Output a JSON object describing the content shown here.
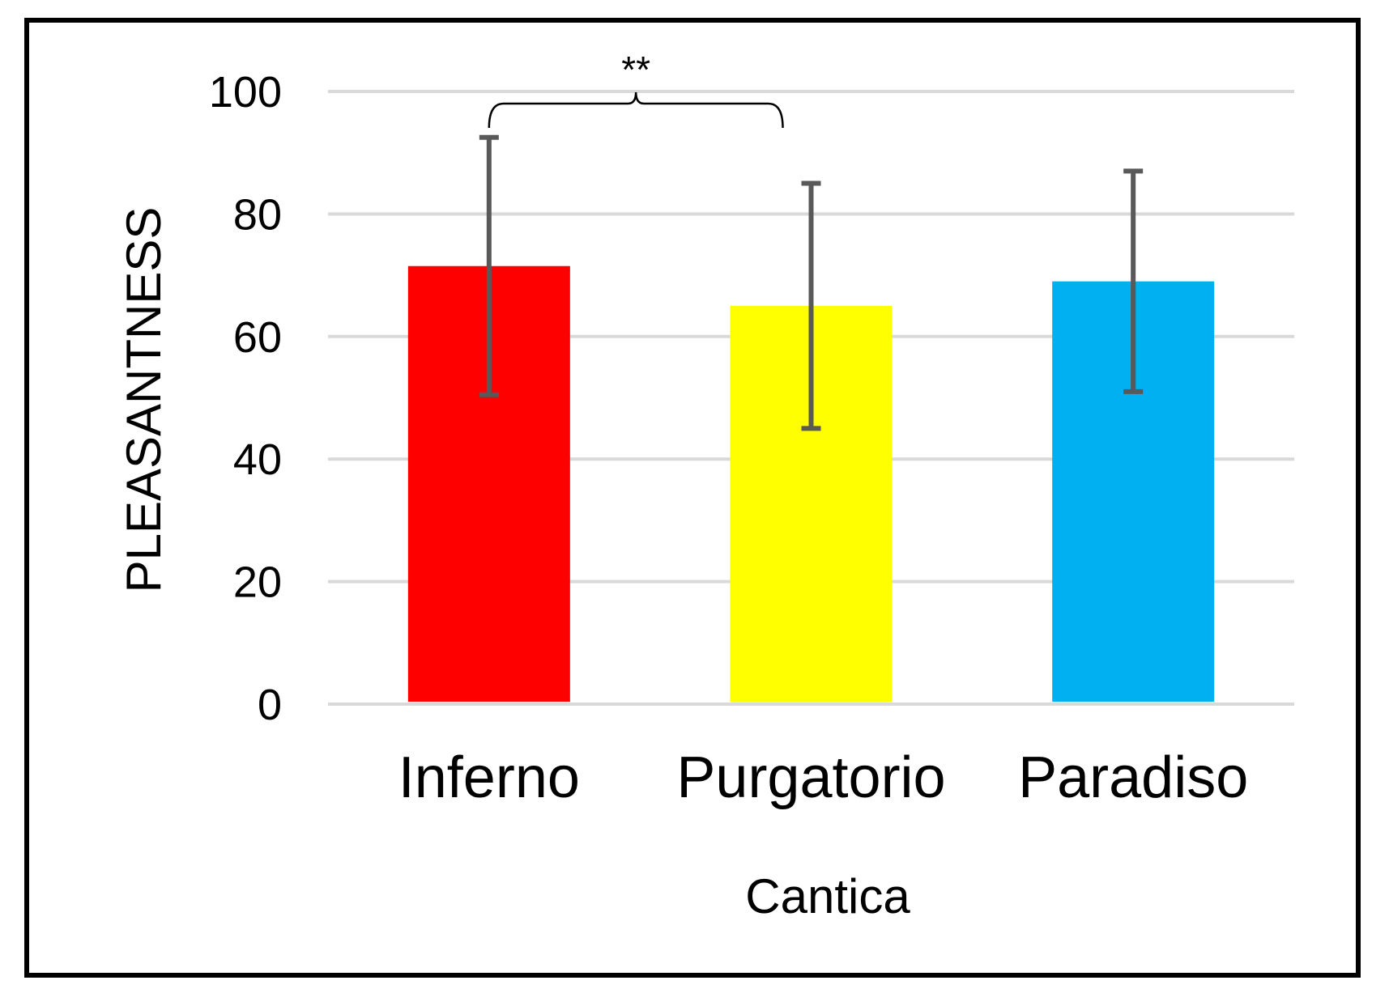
{
  "chart_data": {
    "type": "bar",
    "title": "",
    "categories": [
      "Inferno",
      "Purgatorio",
      "Paradiso"
    ],
    "values": [
      71.5,
      65,
      69
    ],
    "error_low": [
      50.5,
      45,
      51
    ],
    "error_high": [
      92.5,
      85,
      87
    ],
    "colors": [
      "#ff0000",
      "#ffff00",
      "#00b0f0"
    ],
    "xlabel": "Cantica",
    "ylabel": "PLEASANTNESS",
    "yticks": [
      "0",
      "20",
      "40",
      "60",
      "80",
      "100"
    ],
    "ytick_values": [
      0,
      20,
      40,
      60,
      80,
      100
    ],
    "ylim": [
      0,
      100
    ],
    "grid": true,
    "grid_color": "#d9d9d9",
    "errorbar_color": "#595959",
    "annotation": {
      "text": "**",
      "from_category": "Inferno",
      "to_category": "Purgatorio"
    }
  }
}
